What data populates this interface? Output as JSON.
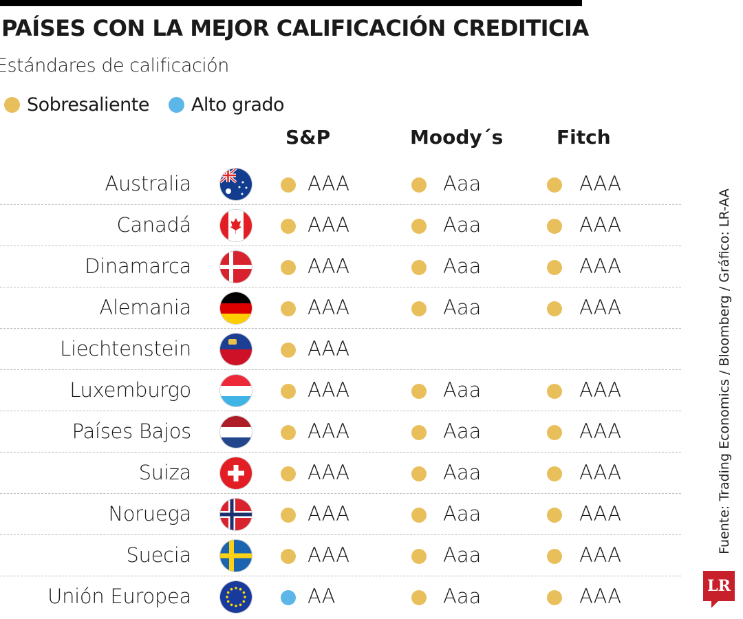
{
  "title": "PAÍSES CON LA MEJOR CALIFICACIÓN CREDITICIA",
  "subtitle": "Estándares de calificación",
  "legend": [
    {
      "label": "Sobresaliente",
      "color": "#e8bf5a"
    },
    {
      "label": "Alto grado",
      "color": "#5db6e8"
    }
  ],
  "source": "Fuente: Trading Economics / Bloomberg  / Gráfico: LR-AA",
  "logo": "LR",
  "chart_data": {
    "type": "table",
    "columns": [
      "S&P",
      "Moody´s",
      "Fitch"
    ],
    "rows": [
      {
        "country": "Australia",
        "flag": "australia",
        "ratings": [
          {
            "value": "AAA",
            "grade": "Sobresaliente"
          },
          {
            "value": "Aaa",
            "grade": "Sobresaliente"
          },
          {
            "value": "AAA",
            "grade": "Sobresaliente"
          }
        ]
      },
      {
        "country": "Canadá",
        "flag": "canada",
        "ratings": [
          {
            "value": "AAA",
            "grade": "Sobresaliente"
          },
          {
            "value": "Aaa",
            "grade": "Sobresaliente"
          },
          {
            "value": "AAA",
            "grade": "Sobresaliente"
          }
        ]
      },
      {
        "country": "Dinamarca",
        "flag": "denmark",
        "ratings": [
          {
            "value": "AAA",
            "grade": "Sobresaliente"
          },
          {
            "value": "Aaa",
            "grade": "Sobresaliente"
          },
          {
            "value": "AAA",
            "grade": "Sobresaliente"
          }
        ]
      },
      {
        "country": "Alemania",
        "flag": "germany",
        "ratings": [
          {
            "value": "AAA",
            "grade": "Sobresaliente"
          },
          {
            "value": "Aaa",
            "grade": "Sobresaliente"
          },
          {
            "value": "AAA",
            "grade": "Sobresaliente"
          }
        ]
      },
      {
        "country": "Liechtenstein",
        "flag": "liechtenstein",
        "ratings": [
          {
            "value": "AAA",
            "grade": "Sobresaliente"
          },
          null,
          null
        ]
      },
      {
        "country": "Luxemburgo",
        "flag": "luxembourg",
        "ratings": [
          {
            "value": "AAA",
            "grade": "Sobresaliente"
          },
          {
            "value": "Aaa",
            "grade": "Sobresaliente"
          },
          {
            "value": "AAA",
            "grade": "Sobresaliente"
          }
        ]
      },
      {
        "country": "Países Bajos",
        "flag": "netherlands",
        "ratings": [
          {
            "value": "AAA",
            "grade": "Sobresaliente"
          },
          {
            "value": "Aaa",
            "grade": "Sobresaliente"
          },
          {
            "value": "AAA",
            "grade": "Sobresaliente"
          }
        ]
      },
      {
        "country": "Suiza",
        "flag": "switzerland",
        "ratings": [
          {
            "value": "AAA",
            "grade": "Sobresaliente"
          },
          {
            "value": "Aaa",
            "grade": "Sobresaliente"
          },
          {
            "value": "AAA",
            "grade": "Sobresaliente"
          }
        ]
      },
      {
        "country": "Noruega",
        "flag": "norway",
        "ratings": [
          {
            "value": "AAA",
            "grade": "Sobresaliente"
          },
          {
            "value": "Aaa",
            "grade": "Sobresaliente"
          },
          {
            "value": "AAA",
            "grade": "Sobresaliente"
          }
        ]
      },
      {
        "country": "Suecia",
        "flag": "sweden",
        "ratings": [
          {
            "value": "AAA",
            "grade": "Sobresaliente"
          },
          {
            "value": "Aaa",
            "grade": "Sobresaliente"
          },
          {
            "value": "AAA",
            "grade": "Sobresaliente"
          }
        ]
      },
      {
        "country": "Unión Europea",
        "flag": "european-union",
        "ratings": [
          {
            "value": "AA",
            "grade": "Alto grado"
          },
          {
            "value": "Aaa",
            "grade": "Sobresaliente"
          },
          {
            "value": "AAA",
            "grade": "Sobresaliente"
          }
        ]
      }
    ]
  }
}
